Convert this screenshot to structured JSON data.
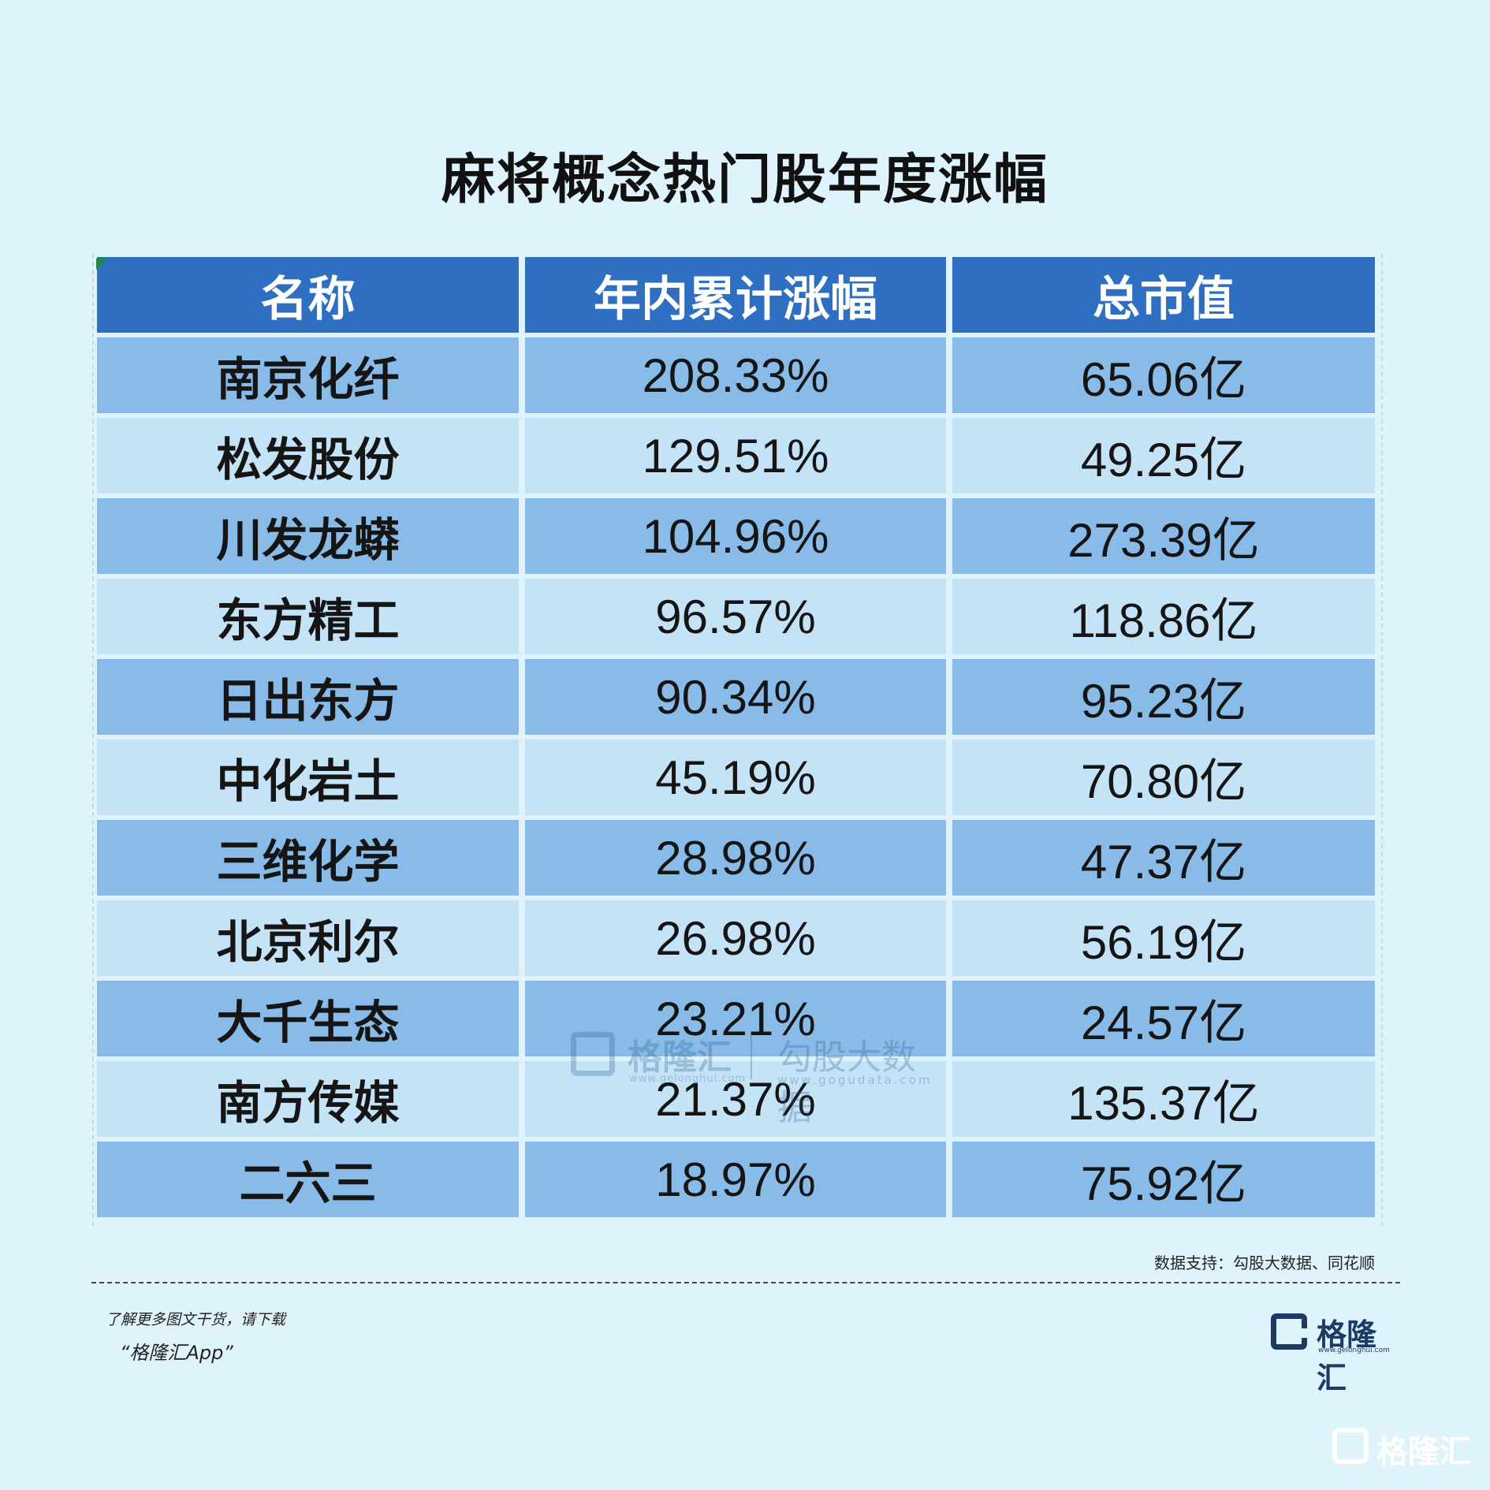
{
  "title": "麻将概念热门股年度涨幅",
  "chart_data": {
    "type": "table",
    "title": "麻将概念热门股年度涨幅",
    "columns": [
      "名称",
      "年内累计涨幅",
      "总市值"
    ],
    "rows": [
      [
        "南京化纤",
        "208.33%",
        "65.06亿"
      ],
      [
        "松发股份",
        "129.51%",
        "49.25亿"
      ],
      [
        "川发龙蟒",
        "104.96%",
        "273.39亿"
      ],
      [
        "东方精工",
        "96.57%",
        "118.86亿"
      ],
      [
        "日出东方",
        "90.34%",
        "95.23亿"
      ],
      [
        "中化岩土",
        "45.19%",
        "70.80亿"
      ],
      [
        "三维化学",
        "28.98%",
        "47.37亿"
      ],
      [
        "北京利尔",
        "26.98%",
        "56.19亿"
      ],
      [
        "大千生态",
        "23.21%",
        "24.57亿"
      ],
      [
        "南方传媒",
        "21.37%",
        "135.37亿"
      ],
      [
        "二六三",
        "18.97%",
        "75.92亿"
      ]
    ]
  },
  "watermark": {
    "brand": "格隆汇",
    "brand_url": "www.gelonghui.com",
    "data_brand": "勾股大数据",
    "data_url": "www.gogudata.com"
  },
  "source": "数据支持：勾股大数据、同花顺",
  "footer": {
    "promo_line1": "了解更多图文干货，请下载",
    "promo_line2": "“格隆汇App”",
    "logo_text": "格隆汇",
    "logo_url": "www.gelonghui.com",
    "corner_logo_text": "格隆汇"
  },
  "colors": {
    "background": "#dff3fd",
    "header": "#2e6fc2",
    "row_dark": "#88bbe8",
    "row_light": "#c4e3f7"
  }
}
